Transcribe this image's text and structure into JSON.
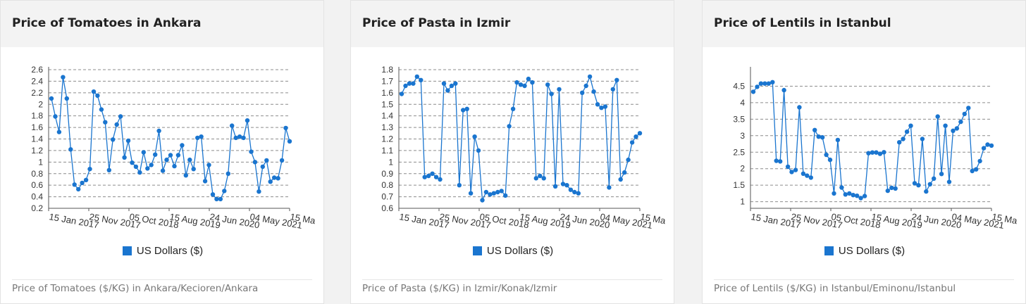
{
  "chart_data": [
    {
      "type": "line",
      "title": "Price of Tomatoes in Ankara",
      "caption": "Price of Tomatoes ($/KG) in Ankara/Kecioren/Ankara",
      "ylim": [
        0.2,
        2.6
      ],
      "yticks": [
        0.2,
        0.4,
        0.6,
        0.8,
        1,
        1.2,
        1.4,
        1.6,
        1.8,
        2,
        2.2,
        2.4,
        2.6
      ],
      "xticks": [
        "15 Jan 2017",
        "25 Nov 2017",
        "05 Oct 2018",
        "15 Aug 2019",
        "24 Jun 2020",
        "04 May 2021",
        "15 Ma"
      ],
      "grid": true,
      "legend_position": "bottom",
      "series": [
        {
          "name": "US Dollars ($)",
          "color": "#1a75cf",
          "values": [
            2.1,
            1.79,
            1.52,
            2.47,
            2.1,
            1.22,
            0.61,
            0.53,
            0.64,
            0.69,
            0.88,
            2.22,
            2.15,
            1.91,
            1.69,
            0.86,
            1.39,
            1.65,
            1.79,
            1.08,
            1.37,
            0.99,
            0.92,
            0.82,
            1.17,
            0.89,
            0.95,
            1.13,
            1.54,
            0.85,
            1.04,
            1.12,
            0.93,
            1.12,
            1.29,
            0.77,
            1.04,
            0.88,
            1.42,
            1.44,
            0.67,
            0.95,
            0.44,
            0.36,
            0.36,
            0.5,
            0.8,
            1.63,
            1.42,
            1.44,
            1.42,
            1.72,
            1.18,
            1.0,
            0.49,
            0.92,
            1.03,
            0.66,
            0.73,
            0.72,
            1.03,
            1.59,
            1.36
          ]
        }
      ]
    },
    {
      "type": "line",
      "title": "Price of Pasta in Izmir",
      "caption": "Price of Pasta ($/KG) in Izmir/Konak/Izmir",
      "ylim": [
        0.6,
        1.8
      ],
      "yticks": [
        0.6,
        0.7,
        0.8,
        0.9,
        1,
        1.1,
        1.2,
        1.3,
        1.4,
        1.5,
        1.6,
        1.7,
        1.8
      ],
      "xticks": [
        "15 Jan 2017",
        "25 Nov 2017",
        "05 Oct 2018",
        "15 Aug 2019",
        "24 Jun 2020",
        "04 May 2021",
        "15 Ma"
      ],
      "grid": true,
      "legend_position": "bottom",
      "series": [
        {
          "name": "US Dollars ($)",
          "color": "#1a75cf",
          "values": [
            1.59,
            1.66,
            1.68,
            1.68,
            1.74,
            1.71,
            0.87,
            0.88,
            0.9,
            0.87,
            0.85,
            1.68,
            1.62,
            1.66,
            1.68,
            0.8,
            1.45,
            1.46,
            0.73,
            1.22,
            1.1,
            0.67,
            0.74,
            0.72,
            0.73,
            0.74,
            0.75,
            0.71,
            1.31,
            1.46,
            1.69,
            1.67,
            1.66,
            1.72,
            1.69,
            0.86,
            0.88,
            0.86,
            1.67,
            1.59,
            0.79,
            1.63,
            0.81,
            0.8,
            0.76,
            0.74,
            0.73,
            1.6,
            1.66,
            1.74,
            1.61,
            1.5,
            1.47,
            1.48,
            0.78,
            1.63,
            1.71,
            0.85,
            0.91,
            1.02,
            1.17,
            1.22,
            1.25
          ]
        }
      ]
    },
    {
      "type": "line",
      "title": "Price of Lentils in Istanbul",
      "caption": "Price of Lentils ($/KG) in Istanbul/Eminonu/Istanbul",
      "ylim": [
        0.8,
        5
      ],
      "yticks": [
        1,
        1.5,
        2,
        2.5,
        3,
        3.5,
        4,
        4.5
      ],
      "xticks": [
        "15 Jan 2017",
        "25 Nov 2017",
        "05 Oct 2018",
        "15 Aug 2019",
        "24 Jun 2020",
        "04 May 2021",
        "15 Ma"
      ],
      "grid": true,
      "legend_position": "bottom",
      "series": [
        {
          "name": "US Dollars ($)",
          "color": "#1a75cf",
          "values": [
            4.33,
            4.48,
            4.58,
            4.58,
            4.58,
            4.62,
            2.24,
            2.22,
            4.38,
            2.06,
            1.9,
            1.96,
            3.86,
            1.85,
            1.79,
            1.73,
            3.17,
            2.97,
            2.95,
            2.42,
            2.27,
            1.25,
            2.87,
            1.43,
            1.22,
            1.25,
            1.2,
            1.18,
            1.11,
            1.17,
            2.47,
            2.49,
            2.49,
            2.45,
            2.5,
            1.33,
            1.42,
            1.4,
            2.8,
            2.9,
            3.12,
            3.3,
            1.56,
            1.5,
            2.9,
            1.31,
            1.53,
            1.7,
            3.58,
            1.84,
            3.3,
            1.6,
            3.15,
            3.22,
            3.42,
            3.66,
            3.84,
            1.93,
            1.98,
            2.23,
            2.62,
            2.73,
            2.7
          ]
        }
      ]
    }
  ]
}
